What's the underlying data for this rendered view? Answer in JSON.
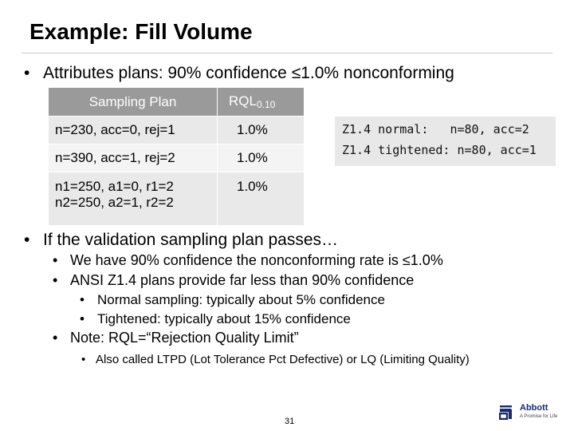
{
  "slide": {
    "title": "Example: Fill Volume",
    "bullet_main": "Attributes plans: 90% confidence ≤1.0% nonconforming",
    "table": {
      "header_plan": "Sampling Plan",
      "header_rql": "RQL",
      "header_rql_sub": "0.10",
      "rows": [
        {
          "plan_line1": "n=230, acc=0, rej=1",
          "plan_line2": "",
          "rql": "1.0%"
        },
        {
          "plan_line1": "n=390, acc=1, rej=2",
          "plan_line2": "",
          "rql": "1.0%"
        },
        {
          "plan_line1": "n1=250, a1=0, r1=2",
          "plan_line2": "n2=250, a2=1, r2=2",
          "rql": "1.0%"
        }
      ]
    },
    "z14_box": {
      "line1": "Z1.4 normal:   n=80, acc=2",
      "line2": "Z1.4 tightened: n=80, acc=1"
    },
    "bullet_validation": "If the validation sampling plan passes…",
    "sub_bullets": {
      "confidence": "We have 90% confidence the nonconforming rate is ≤1.0%",
      "ansi": "ANSI Z1.4 plans provide far less than 90% confidence",
      "normal": "Normal sampling: typically about 5% confidence",
      "tightened": "Tightened: typically about 15% confidence",
      "note": "Note: RQL=“Rejection Quality Limit”",
      "also": "Also called LTPD (Lot Tolerance Pct Defective) or LQ (Limiting Quality)"
    },
    "bullet_symbol": "•",
    "page_number": "31",
    "logo": {
      "word": "Abbott",
      "tagline": "A Promise for Life",
      "color": "#1a2c6b"
    }
  }
}
